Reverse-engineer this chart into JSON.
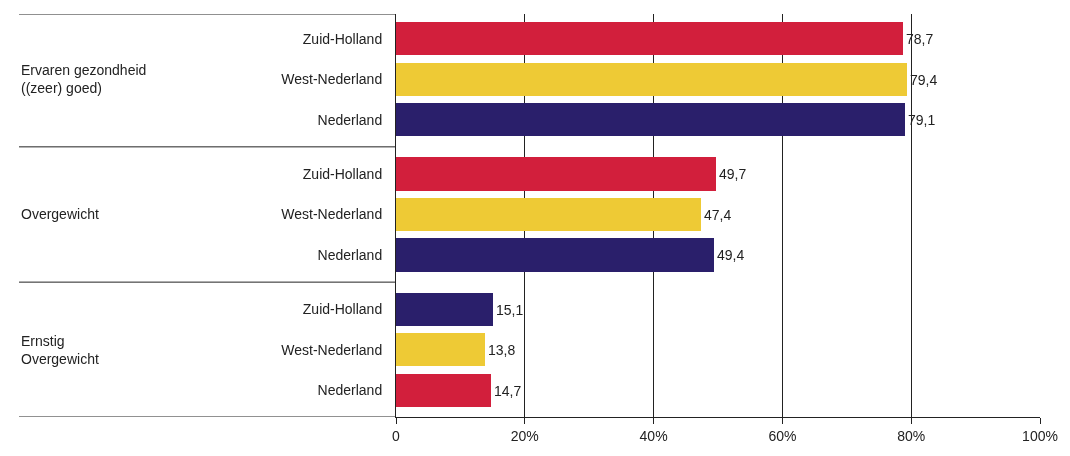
{
  "chart_data": {
    "type": "bar",
    "orientation": "horizontal",
    "categories": [
      "Zuid-Holland",
      "West-Nederland",
      "Nederland",
      "Zuid-Holland",
      "West-Nederland",
      "Nederland",
      "Zuid-Holland",
      "West-Nederland",
      "Nederland"
    ],
    "values": [
      78.7,
      79.4,
      79.1,
      49.7,
      47.4,
      49.4,
      15.1,
      13.8,
      14.7
    ],
    "value_labels": [
      "78,7",
      "79,4",
      "79,1",
      "49,7",
      "47,4",
      "49,4",
      "15,1",
      "13,8",
      "14,7"
    ],
    "colors": [
      "#d21f3c",
      "#eeca35",
      "#2a1f6b",
      "#d21f3c",
      "#eeca35",
      "#2a1f6b",
      "#2a1f6b",
      "#eeca35",
      "#d21f3c"
    ],
    "annotations": [
      "Ervaren gezondheid\n((zeer) goed)",
      "Overgewicht",
      "Ernstig\nOvergewicht"
    ],
    "xlim": [
      0,
      100
    ],
    "xticks": [
      {
        "value": 0,
        "label": "0"
      },
      {
        "value": 20,
        "label": "20%"
      },
      {
        "value": 40,
        "label": "40%"
      },
      {
        "value": 60,
        "label": "60%"
      },
      {
        "value": 80,
        "label": "80%"
      },
      {
        "value": 100,
        "label": "100%"
      }
    ],
    "grid": "x",
    "legend": false
  }
}
